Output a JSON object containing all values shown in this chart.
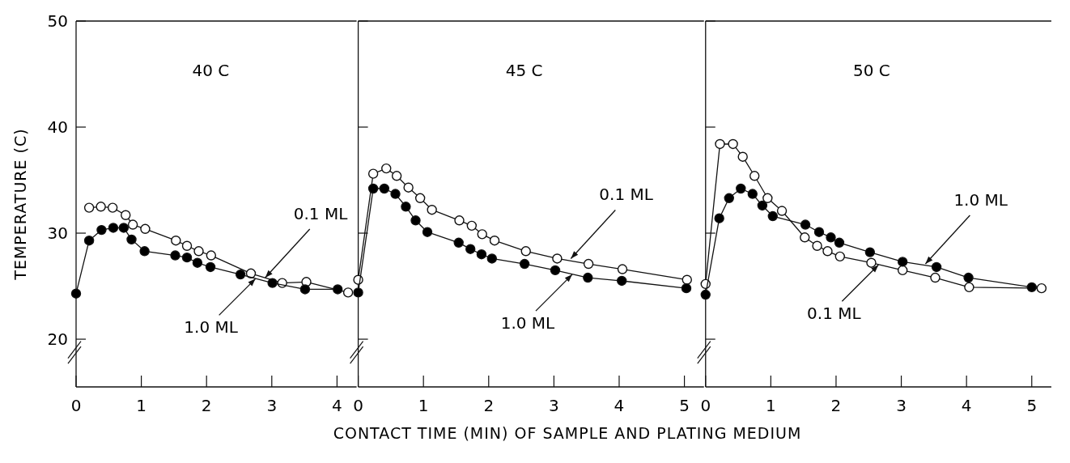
{
  "chart_data": [
    {
      "type": "line",
      "title": "40 C",
      "ylabel": "TEMPERATURE (C)",
      "marker": "circle",
      "xlim": [
        0,
        4.3
      ],
      "xticks": [
        0,
        1,
        2,
        3,
        4
      ],
      "ylim": [
        15.5,
        50
      ],
      "yticks": [
        20,
        30,
        40,
        50
      ],
      "series": [
        {
          "color": "#ffffff",
          "x": [
            0.2,
            0.38,
            0.56,
            0.76,
            0.87,
            1.06,
            1.53,
            1.7,
            1.88,
            2.07,
            2.68,
            3.16,
            3.53,
            4.17
          ],
          "values": [
            32.4,
            32.5,
            32.4,
            31.7,
            30.8,
            30.4,
            29.3,
            28.8,
            28.3,
            27.9,
            26.2,
            25.3,
            25.4,
            24.4
          ]
        },
        {
          "color": "#000000",
          "x": [
            0,
            0.2,
            0.39,
            0.57,
            0.73,
            0.85,
            1.05,
            1.52,
            1.7,
            1.86,
            2.06,
            2.52,
            3.01,
            3.51,
            4.01
          ],
          "values": [
            24.3,
            29.3,
            30.3,
            30.5,
            30.5,
            29.4,
            28.3,
            27.9,
            27.7,
            27.2,
            26.8,
            26.1,
            25.3,
            24.7,
            24.7
          ]
        }
      ],
      "annotations": [
        {
          "text": "0.1 ML",
          "x": 2.9,
          "y": 25.8
        },
        {
          "text": "1.0 ML",
          "x": 2.75,
          "y": 25.7
        }
      ]
    },
    {
      "type": "line",
      "title": "45 C",
      "xlabel": "CONTACT TIME (MIN) OF SAMPLE AND PLATING MEDIUM",
      "marker": "circle",
      "tick_labels": "x",
      "xlim": [
        0,
        5.3
      ],
      "xticks": [
        0,
        1,
        2,
        3,
        4,
        5
      ],
      "ylim": [
        15.5,
        50
      ],
      "yticks": [
        20,
        30,
        40,
        50
      ],
      "series": [
        {
          "color": "#ffffff",
          "x": [
            0,
            0.23,
            0.43,
            0.59,
            0.77,
            0.95,
            1.13,
            1.55,
            1.74,
            1.9,
            2.09,
            2.57,
            3.05,
            3.53,
            4.05,
            5.04
          ],
          "values": [
            25.6,
            35.6,
            36.1,
            35.4,
            34.3,
            33.3,
            32.2,
            31.2,
            30.7,
            29.9,
            29.3,
            28.3,
            27.6,
            27.1,
            26.6,
            25.6
          ]
        },
        {
          "color": "#000000",
          "x": [
            0,
            0.23,
            0.4,
            0.57,
            0.73,
            0.88,
            1.06,
            1.54,
            1.72,
            1.89,
            2.05,
            2.55,
            3.02,
            3.52,
            4.04,
            5.03
          ],
          "values": [
            24.4,
            34.2,
            34.2,
            33.7,
            32.5,
            31.2,
            30.1,
            29.1,
            28.5,
            28,
            27.6,
            27.1,
            26.5,
            25.8,
            25.5,
            24.8
          ]
        }
      ],
      "annotations": [
        {
          "text": "0.1 ML",
          "x": 3.26,
          "y": 27.6
        },
        {
          "text": "1.0 ML",
          "x": 3.28,
          "y": 26.1
        }
      ]
    },
    {
      "type": "line",
      "title": "50 C",
      "marker": "circle",
      "tick_labels": "x",
      "xlim": [
        0,
        5.3
      ],
      "xticks": [
        0,
        1,
        2,
        3,
        4,
        5
      ],
      "ylim": [
        15.5,
        50
      ],
      "yticks": [
        20,
        30,
        40,
        50
      ],
      "series": [
        {
          "color": "#ffffff",
          "x": [
            0,
            0.22,
            0.42,
            0.57,
            0.75,
            0.95,
            1.17,
            1.52,
            1.71,
            1.87,
            2.06,
            2.54,
            3.02,
            3.52,
            4.04,
            5.15
          ],
          "values": [
            25.2,
            38.4,
            38.4,
            37.2,
            35.4,
            33.3,
            32.1,
            29.6,
            28.8,
            28.3,
            27.8,
            27.2,
            26.5,
            25.8,
            24.9,
            24.8
          ]
        },
        {
          "color": "#000000",
          "x": [
            0,
            0.21,
            0.36,
            0.54,
            0.72,
            0.87,
            1.03,
            1.53,
            1.74,
            1.92,
            2.05,
            2.52,
            3.02,
            3.54,
            4.03,
            5
          ],
          "values": [
            24.2,
            31.4,
            33.3,
            34.2,
            33.7,
            32.6,
            31.6,
            30.8,
            30.1,
            29.6,
            29.1,
            28.2,
            27.3,
            26.8,
            25.8,
            24.9
          ]
        }
      ],
      "annotations": [
        {
          "text": "1.0 ML",
          "x": 3.37,
          "y": 27.1
        },
        {
          "text": "0.1 ML",
          "x": 2.65,
          "y": 27
        }
      ]
    }
  ]
}
